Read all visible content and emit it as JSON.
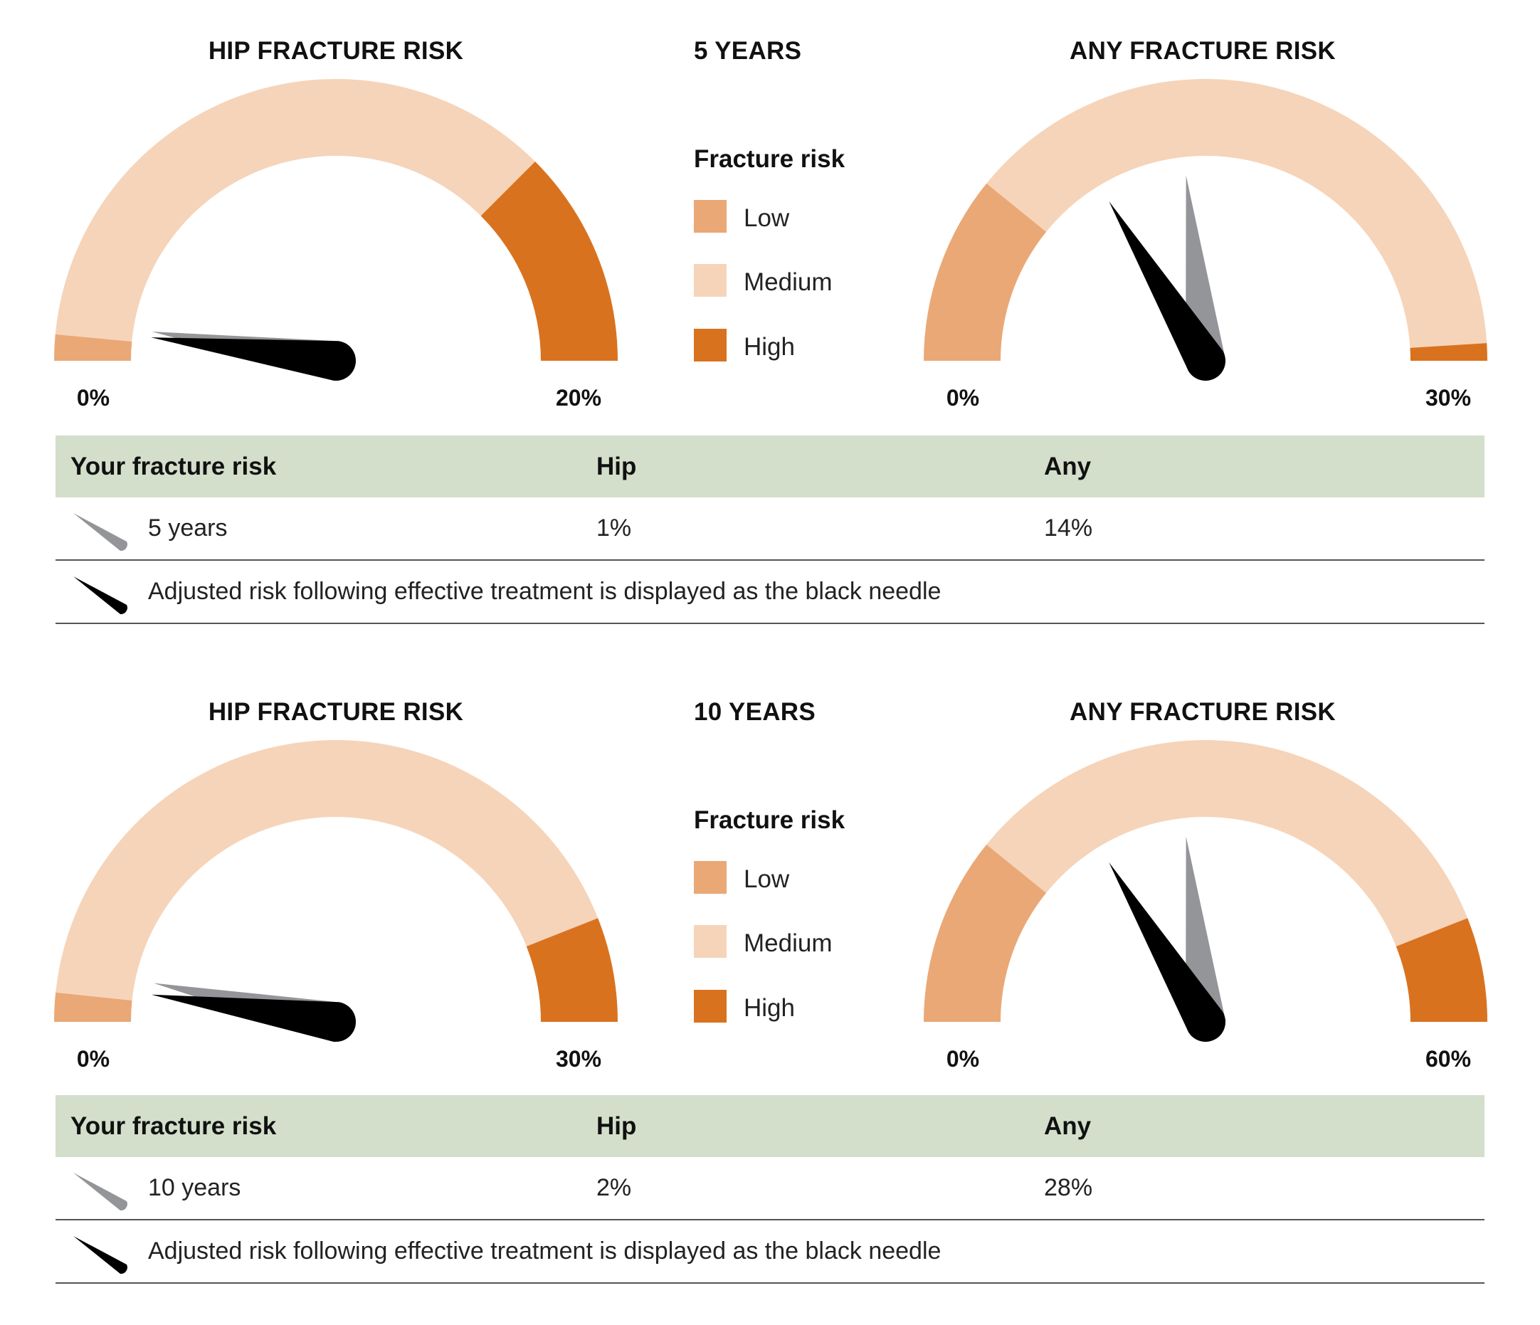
{
  "colors": {
    "low": "#eaa876",
    "medium": "#f6d4b9",
    "high": "#d9721f",
    "current_needle": "#939598",
    "adjusted_needle": "#000000",
    "table_header": "#d3dfca"
  },
  "panels": [
    {
      "period": "5 YEARS",
      "legend": {
        "heading": "Fracture risk",
        "items": [
          {
            "label": "Low",
            "color": "#eaa876"
          },
          {
            "label": "Medium",
            "color": "#f6d4b9"
          },
          {
            "label": "High",
            "color": "#d9721f"
          }
        ]
      },
      "table": {
        "headers": [
          "Your fracture risk",
          "Hip",
          "Any"
        ],
        "row": {
          "label": "5 years",
          "hip": "1%",
          "any": "14%"
        },
        "note": "Adjusted risk following effective treatment is displayed as the black needle"
      }
    },
    {
      "period": "10 YEARS",
      "legend": {
        "heading": "Fracture risk",
        "items": [
          {
            "label": "Low",
            "color": "#eaa876"
          },
          {
            "label": "Medium",
            "color": "#f6d4b9"
          },
          {
            "label": "High",
            "color": "#d9721f"
          }
        ]
      },
      "table": {
        "headers": [
          "Your fracture risk",
          "Hip",
          "Any"
        ],
        "row": {
          "label": "10 years",
          "hip": "2%",
          "any": "28%"
        },
        "note": "Adjusted risk following effective treatment is displayed as the black needle"
      }
    }
  ],
  "chart_data": [
    {
      "type": "gauge",
      "title": "HIP FRACTURE RISK",
      "period": "5 YEARS",
      "min": 0,
      "max": 20,
      "min_label": "0%",
      "max_label": "20%",
      "bands": [
        {
          "name": "Low",
          "from": 0,
          "to": 0.6
        },
        {
          "name": "Medium",
          "from": 0.6,
          "to": 15
        },
        {
          "name": "High",
          "from": 15,
          "to": 20
        }
      ],
      "current_value": 1,
      "adjusted_value": 0.8
    },
    {
      "type": "gauge",
      "title": "ANY FRACTURE RISK",
      "period": "5 YEARS",
      "min": 0,
      "max": 30,
      "min_label": "0%",
      "max_label": "30%",
      "bands": [
        {
          "name": "Low",
          "from": 0,
          "to": 6.5
        },
        {
          "name": "Medium",
          "from": 6.5,
          "to": 29.4
        },
        {
          "name": "High",
          "from": 29.4,
          "to": 30
        }
      ],
      "current_value": 14,
      "adjusted_value": 9.8
    },
    {
      "type": "gauge",
      "title": "HIP FRACTURE RISK",
      "period": "10 YEARS",
      "min": 0,
      "max": 30,
      "min_label": "0%",
      "max_label": "30%",
      "bands": [
        {
          "name": "Low",
          "from": 0,
          "to": 1
        },
        {
          "name": "Medium",
          "from": 1,
          "to": 26.4
        },
        {
          "name": "High",
          "from": 26.4,
          "to": 30
        }
      ],
      "current_value": 2,
      "adjusted_value": 1.4
    },
    {
      "type": "gauge",
      "title": "ANY FRACTURE RISK",
      "period": "10 YEARS",
      "min": 0,
      "max": 60,
      "min_label": "0%",
      "max_label": "60%",
      "bands": [
        {
          "name": "Low",
          "from": 0,
          "to": 13
        },
        {
          "name": "Medium",
          "from": 13,
          "to": 52.8
        },
        {
          "name": "High",
          "from": 52.8,
          "to": 60
        }
      ],
      "current_value": 28,
      "adjusted_value": 19.6
    }
  ]
}
